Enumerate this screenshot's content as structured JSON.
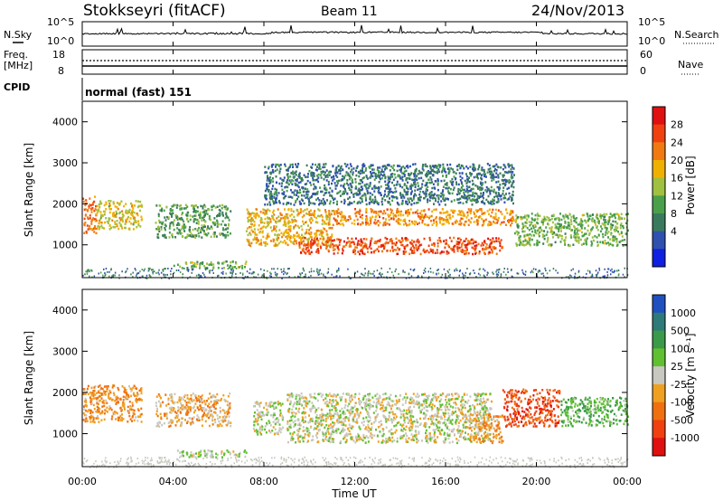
{
  "header": {
    "station": "Stokkseyri (fitACF)",
    "beam": "Beam 11",
    "date": "24/Nov/2013"
  },
  "noise_panel": {
    "left_label": "N.Sky",
    "right_label": "N.Search",
    "left_ticks": [
      "10^5",
      "10^0"
    ],
    "right_ticks": [
      "10^5",
      "10^0"
    ]
  },
  "freq_panel": {
    "left_label_1": "Freq.",
    "left_label_2": "[MHz]",
    "left_ticks": [
      "18",
      "8"
    ],
    "right_label": "Nave",
    "right_ticks": [
      "60",
      "0"
    ]
  },
  "cpid_panel": {
    "label": "CPID",
    "value": "normal (fast) 151"
  },
  "power_panel": {
    "ylabel": "Slant Range [km]",
    "yticks": [
      "4000",
      "3000",
      "2000",
      "1000"
    ],
    "colorbar_label": "Power [dB]",
    "colorbar_ticks": [
      "28",
      "24",
      "20",
      "16",
      "12",
      "8",
      "4"
    ],
    "colors": [
      "#1020e0",
      "#3050b0",
      "#3a7a5c",
      "#4aa04a",
      "#a0c040",
      "#f0b000",
      "#f07a10",
      "#f04010",
      "#e01010"
    ]
  },
  "velocity_panel": {
    "ylabel": "Slant Range [km]",
    "yticks": [
      "4000",
      "3000",
      "2000",
      "1000"
    ],
    "colorbar_label": "Velocity [m s⁻¹]",
    "colorbar_ticks": [
      "1000",
      "500",
      "100",
      "25",
      "-25",
      "-100",
      "-500",
      "-1000"
    ],
    "colors": [
      "#2050c0",
      "#2e7a78",
      "#3a9a4a",
      "#60c030",
      "#c8c8c0",
      "#f0a020",
      "#f07010",
      "#f04010",
      "#e01010"
    ]
  },
  "x_axis": {
    "ticks": [
      "00:00",
      "04:00",
      "08:00",
      "12:00",
      "16:00",
      "20:00",
      "00:00"
    ],
    "label": "Time UT"
  },
  "chart_data": [
    {
      "type": "heatmap",
      "title": "Power",
      "xlabel": "Time UT",
      "ylabel": "Slant Range [km]",
      "xlim": [
        0,
        24
      ],
      "ylim": [
        200,
        4500
      ],
      "zlabel": "Power [dB]",
      "zlim": [
        0,
        32
      ],
      "blobs": [
        {
          "t0": 0.0,
          "t1": 0.6,
          "r0": 1300,
          "r1": 2200,
          "z": 24
        },
        {
          "t0": 0.6,
          "t1": 2.6,
          "r0": 1400,
          "r1": 2100,
          "z": 18
        },
        {
          "t0": 3.2,
          "t1": 6.5,
          "r0": 1200,
          "r1": 2000,
          "z": 12
        },
        {
          "t0": 4.0,
          "t1": 7.2,
          "r0": 450,
          "r1": 620,
          "z": 14
        },
        {
          "t0": 7.2,
          "t1": 11.0,
          "r0": 1000,
          "r1": 1900,
          "z": 20
        },
        {
          "t0": 9.5,
          "t1": 18.5,
          "r0": 800,
          "r1": 1200,
          "z": 26
        },
        {
          "t0": 11.0,
          "t1": 19.0,
          "r0": 1500,
          "r1": 1900,
          "z": 22
        },
        {
          "t0": 8.0,
          "t1": 19.0,
          "r0": 2000,
          "r1": 3000,
          "z": 8
        },
        {
          "t0": 19.0,
          "t1": 24.0,
          "r0": 1000,
          "r1": 1800,
          "z": 14
        }
      ]
    },
    {
      "type": "heatmap",
      "title": "Velocity",
      "xlabel": "Time UT",
      "ylabel": "Slant Range [km]",
      "xlim": [
        0,
        24
      ],
      "ylim": [
        200,
        4500
      ],
      "zlabel": "Velocity [m s⁻¹]",
      "zlim": [
        -1000,
        1000
      ],
      "blobs": [
        {
          "t0": 0.0,
          "t1": 2.6,
          "r0": 1300,
          "r1": 2200,
          "z": -300
        },
        {
          "t0": 3.2,
          "t1": 6.5,
          "r0": 1200,
          "r1": 2000,
          "z": -200
        },
        {
          "t0": 4.0,
          "t1": 7.2,
          "r0": 450,
          "r1": 620,
          "z": 80
        },
        {
          "t0": 7.5,
          "t1": 8.8,
          "r0": 1000,
          "r1": 1800,
          "z": 60
        },
        {
          "t0": 9.0,
          "t1": 18.0,
          "r0": 800,
          "r1": 2000,
          "z": 0
        },
        {
          "t0": 17.0,
          "t1": 18.5,
          "r0": 800,
          "r1": 1500,
          "z": -300
        },
        {
          "t0": 18.5,
          "t1": 21.0,
          "r0": 1200,
          "r1": 2100,
          "z": -600
        },
        {
          "t0": 21.0,
          "t1": 24.0,
          "r0": 1200,
          "r1": 1900,
          "z": 300
        }
      ]
    }
  ]
}
